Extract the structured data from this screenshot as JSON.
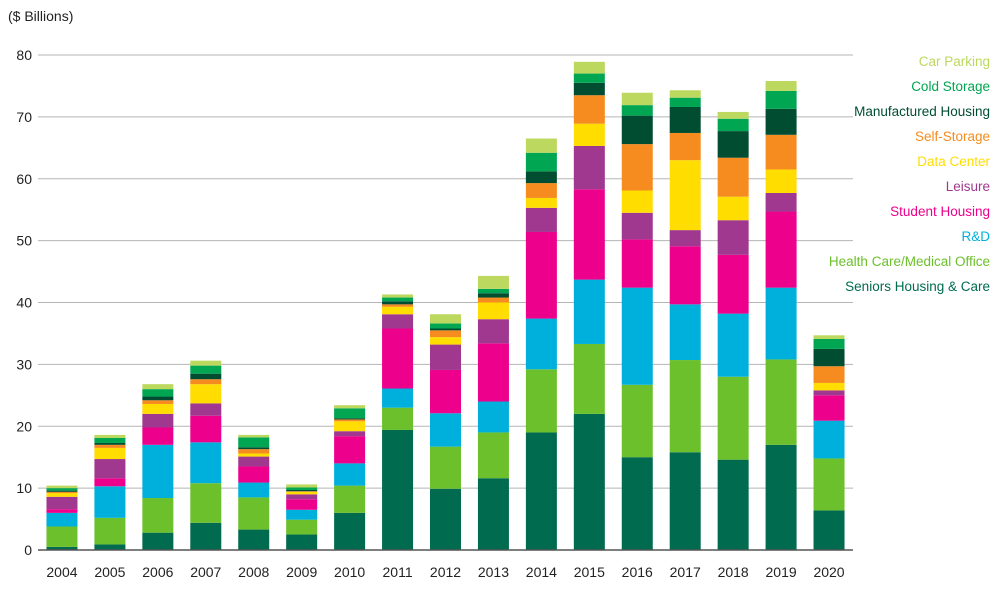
{
  "chart_data": {
    "type": "bar",
    "stacked": true,
    "unit_label": "($ Billions)",
    "categories": [
      "2004",
      "2005",
      "2006",
      "2007",
      "2008",
      "2009",
      "2010",
      "2011",
      "2012",
      "2013",
      "2014",
      "2015",
      "2016",
      "2017",
      "2018",
      "2019",
      "2020"
    ],
    "ylim": [
      0,
      80
    ],
    "yticks": [
      0,
      10,
      20,
      30,
      40,
      50,
      60,
      70,
      80
    ],
    "grid": true,
    "legend_position": "right",
    "series": [
      {
        "name": "Seniors Housing & Care",
        "color": "#006b4f",
        "values": [
          0.5,
          0.9,
          2.8,
          4.4,
          3.3,
          2.5,
          6.0,
          19.4,
          9.9,
          11.6,
          19.0,
          22.0,
          15.0,
          15.8,
          14.6,
          17.0,
          6.4
        ]
      },
      {
        "name": "Health Care/Medical Office",
        "color": "#6cc02b",
        "values": [
          3.3,
          4.3,
          5.6,
          6.4,
          5.2,
          2.4,
          4.4,
          3.6,
          6.8,
          7.4,
          10.2,
          11.3,
          11.7,
          14.9,
          13.4,
          13.8,
          8.4
        ]
      },
      {
        "name": "R&D",
        "color": "#00b0dc",
        "values": [
          2.2,
          5.1,
          8.6,
          6.6,
          2.4,
          1.6,
          3.6,
          3.1,
          5.4,
          5.0,
          8.2,
          10.4,
          15.7,
          9.0,
          10.2,
          11.6,
          6.1
        ]
      },
      {
        "name": "Student Housing",
        "color": "#ec008c",
        "values": [
          0.6,
          1.3,
          2.8,
          4.3,
          2.6,
          1.7,
          4.4,
          9.7,
          7.0,
          9.4,
          14.0,
          14.6,
          7.8,
          9.4,
          9.5,
          12.3,
          4.1
        ]
      },
      {
        "name": "Leisure",
        "color": "#a0388f",
        "values": [
          2.0,
          3.1,
          2.2,
          2.0,
          1.6,
          0.8,
          0.8,
          2.3,
          4.1,
          3.9,
          3.9,
          7.0,
          4.3,
          2.6,
          5.6,
          3.0,
          0.8
        ]
      },
      {
        "name": "Data Center",
        "color": "#ffdd00",
        "values": [
          0.6,
          1.8,
          1.6,
          3.1,
          0.5,
          0.4,
          1.6,
          1.2,
          1.2,
          2.7,
          1.6,
          3.6,
          3.6,
          11.3,
          3.8,
          3.8,
          1.2
        ]
      },
      {
        "name": "Self-Storage",
        "color": "#f68b1f",
        "values": [
          0.2,
          0.5,
          0.6,
          0.8,
          0.7,
          0.1,
          0.3,
          0.4,
          1.1,
          0.8,
          2.4,
          4.6,
          7.5,
          4.4,
          6.3,
          5.6,
          2.7
        ]
      },
      {
        "name": "Manufactured Housing",
        "color": "#004d32",
        "values": [
          0.2,
          0.3,
          0.6,
          0.9,
          0.3,
          0.2,
          0.2,
          0.5,
          0.3,
          0.7,
          1.9,
          2.0,
          4.6,
          4.2,
          4.3,
          4.2,
          2.8
        ]
      },
      {
        "name": "Cold Storage",
        "color": "#00a651",
        "values": [
          0.4,
          0.8,
          1.2,
          1.3,
          1.6,
          0.4,
          1.6,
          0.6,
          0.8,
          0.7,
          3.0,
          1.5,
          1.7,
          1.5,
          2.0,
          2.9,
          1.6
        ]
      },
      {
        "name": "Car Parking",
        "color": "#bcd85f",
        "values": [
          0.4,
          0.5,
          0.8,
          0.8,
          0.4,
          0.5,
          0.5,
          0.5,
          1.5,
          2.1,
          2.3,
          1.9,
          2.0,
          1.2,
          1.1,
          1.6,
          0.6
        ]
      }
    ]
  }
}
